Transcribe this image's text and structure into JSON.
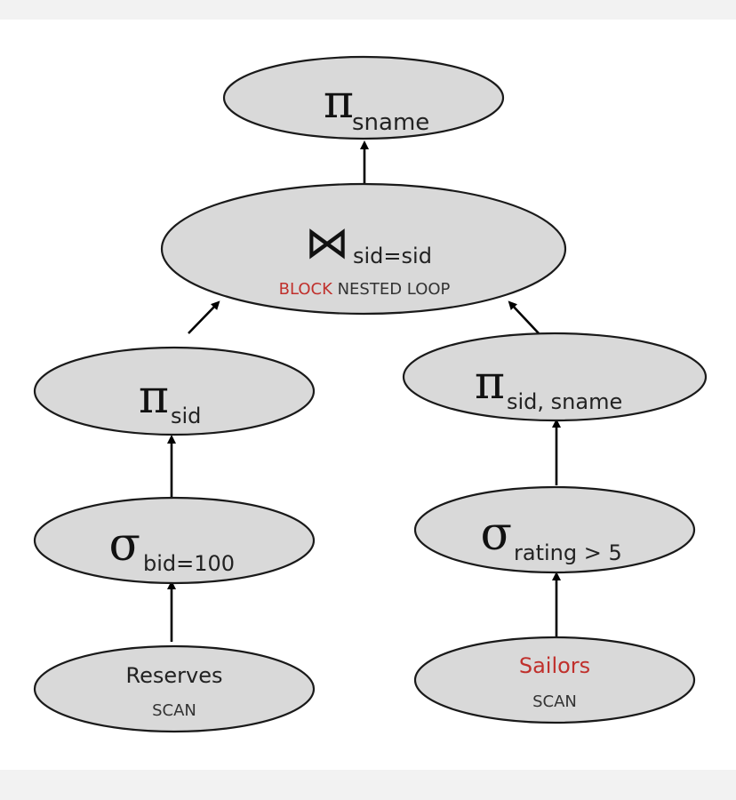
{
  "diagram": {
    "nodes": {
      "project_top": {
        "op_symbol": "π",
        "subscript": "sname"
      },
      "join": {
        "op_symbol": "⋈",
        "subscript": "sid=sid",
        "method_highlight": "BLOCK",
        "method_rest": " NESTED LOOP"
      },
      "project_left": {
        "op_symbol": "π",
        "subscript": "sid"
      },
      "project_right": {
        "op_symbol": "π",
        "subscript": "sid, sname"
      },
      "select_left": {
        "op_symbol": "σ",
        "subscript": "bid=100"
      },
      "select_right": {
        "op_symbol": "σ",
        "subscript": "rating > 5"
      },
      "reserves": {
        "name": "Reserves",
        "method": "SCAN"
      },
      "sailors": {
        "name": "Sailors",
        "method": "SCAN"
      }
    },
    "edges": [
      {
        "from": "reserves",
        "to": "select_left"
      },
      {
        "from": "select_left",
        "to": "project_left"
      },
      {
        "from": "project_left",
        "to": "join"
      },
      {
        "from": "sailors",
        "to": "select_right"
      },
      {
        "from": "select_right",
        "to": "project_right"
      },
      {
        "from": "project_right",
        "to": "join"
      },
      {
        "from": "join",
        "to": "project_top"
      }
    ],
    "colors": {
      "node_fill": "#d9d9d9",
      "node_stroke": "#1a1a1a",
      "highlight": "#c0302c"
    }
  }
}
